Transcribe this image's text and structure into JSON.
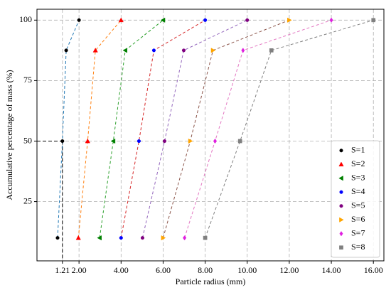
{
  "chart_data": {
    "type": "line",
    "xlabel": "Particle radius (mm)",
    "ylabel": "Accumulative percentage of mass (%)",
    "xlim": [
      0,
      16.5
    ],
    "ylim": [
      0.5,
      104.5
    ],
    "xticks": [
      1.21,
      {
        "value": 2,
        "label": "2.00"
      },
      {
        "value": 4,
        "label": "4.00"
      },
      {
        "value": 6,
        "label": "6.00"
      },
      {
        "value": 8,
        "label": "8.00"
      },
      {
        "value": 10,
        "label": "10.00"
      },
      {
        "value": 12,
        "label": "12.00"
      },
      {
        "value": 14,
        "label": "14.00"
      },
      {
        "value": 16,
        "label": "16.00"
      }
    ],
    "yticks": [
      25,
      50,
      75,
      100
    ],
    "grid": true,
    "legend": "lower right",
    "linestyle": "dashed",
    "guide_point": {
      "x": 1.21,
      "y": 50
    },
    "series": [
      {
        "name": "S=1",
        "color": "#000000",
        "line_color": "#1f77b4",
        "marker": "circle",
        "x": [
          0.98,
          1.21,
          1.39,
          2.0
        ],
        "values": [
          10,
          50,
          87.5,
          100
        ]
      },
      {
        "name": "S=2",
        "color": "#ff0000",
        "line_color": "#ff7f0e",
        "marker": "triangle-up",
        "x": [
          1.97,
          2.41,
          2.78,
          4.0
        ],
        "values": [
          10,
          50,
          87.5,
          100
        ]
      },
      {
        "name": "S=3",
        "color": "#008000",
        "line_color": "#2ca02c",
        "marker": "triangle-left",
        "x": [
          2.98,
          3.63,
          4.2,
          6.0
        ],
        "values": [
          10,
          50,
          87.5,
          100
        ]
      },
      {
        "name": "S=4",
        "color": "#0000ff",
        "line_color": "#d62728",
        "marker": "circle",
        "x": [
          4.0,
          4.85,
          5.56,
          8.0
        ],
        "values": [
          10,
          50,
          87.5,
          100
        ]
      },
      {
        "name": "S=5",
        "color": "#800080",
        "line_color": "#9467bd",
        "marker": "circle",
        "x": [
          5.02,
          6.07,
          6.98,
          10.0
        ],
        "values": [
          10,
          50,
          87.5,
          100
        ]
      },
      {
        "name": "S=6",
        "color": "#ffa500",
        "line_color": "#8c564b",
        "marker": "triangle-right",
        "x": [
          6.0,
          7.29,
          8.37,
          12.0
        ],
        "values": [
          10,
          50,
          87.5,
          100
        ]
      },
      {
        "name": "S=7",
        "color": "#e020e0",
        "line_color": "#e377c2",
        "marker": "diamond",
        "x": [
          7.02,
          8.47,
          9.8,
          14.0
        ],
        "values": [
          10,
          50,
          87.5,
          100
        ]
      },
      {
        "name": "S=8",
        "color": "#808080",
        "line_color": "#7f7f7f",
        "marker": "square",
        "x": [
          8.0,
          9.66,
          11.15,
          16.0
        ],
        "values": [
          10,
          50,
          87.5,
          100
        ]
      }
    ]
  }
}
